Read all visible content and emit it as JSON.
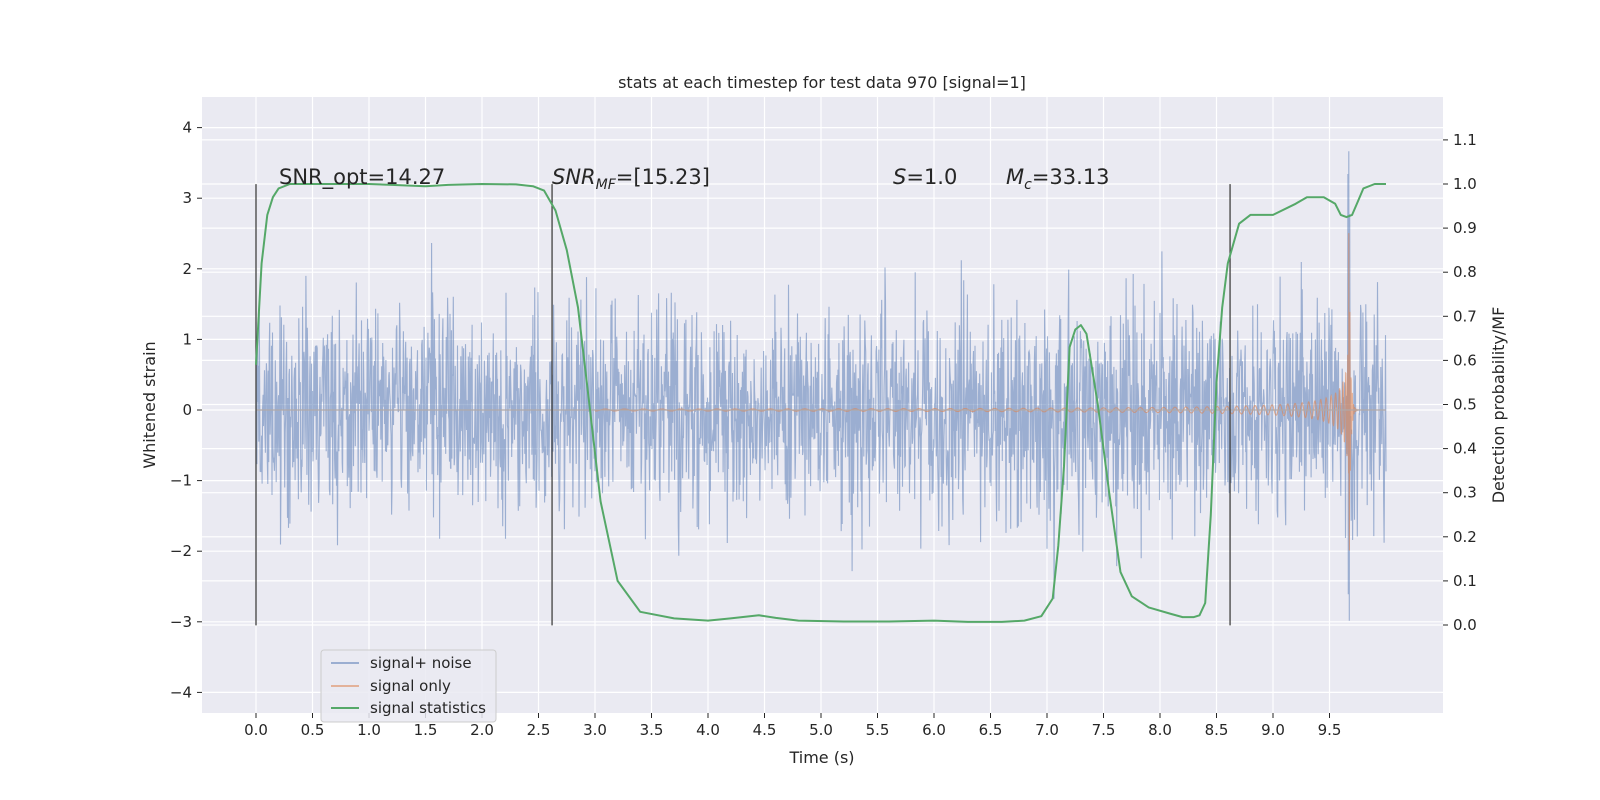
{
  "chart_data": {
    "type": "line",
    "title": "stats at each timestep for test data 970 [signal=1]",
    "xlabel": "Time (s)",
    "ylabel": "Whitened strain",
    "ylabel_right": "Detection probability/MF",
    "xlim": [
      -0.5,
      10.5
    ],
    "ylim": [
      -4.3,
      4.4
    ],
    "ylim_right": [
      -0.2,
      1.18
    ],
    "x_ticks": [
      "0.0",
      "0.5",
      "1.0",
      "1.5",
      "2.0",
      "2.5",
      "3.0",
      "3.5",
      "4.0",
      "4.5",
      "5.0",
      "5.5",
      "6.0",
      "6.5",
      "7.0",
      "7.5",
      "8.0",
      "8.5",
      "9.0",
      "9.5"
    ],
    "x_tick_values": [
      0.0,
      0.5,
      1.0,
      1.5,
      2.0,
      2.5,
      3.0,
      3.5,
      4.0,
      4.5,
      5.0,
      5.5,
      6.0,
      6.5,
      7.0,
      7.5,
      8.0,
      8.5,
      9.0,
      9.5
    ],
    "y_ticks": [
      "4",
      "3",
      "2",
      "1",
      "0",
      "−1",
      "−2",
      "−3",
      "−4"
    ],
    "y_tick_values": [
      4,
      3,
      2,
      1,
      0,
      -1,
      -2,
      -3,
      -4
    ],
    "y_right_ticks": [
      "1.1",
      "1.0",
      "0.9",
      "0.8",
      "0.7",
      "0.6",
      "0.5",
      "0.4",
      "0.3",
      "0.2",
      "0.1",
      "0.0"
    ],
    "y_right_tick_values": [
      1.1,
      1.0,
      0.9,
      0.8,
      0.7,
      0.6,
      0.5,
      0.4,
      0.3,
      0.2,
      0.1,
      0.0
    ],
    "grid": true,
    "legend_position": "lower-left",
    "annotations": {
      "snr_opt": "SNR_opt=14.27",
      "snr_mf_main": "SNR",
      "snr_mf_sub": "MF",
      "snr_mf_value": "=[15.23]",
      "s_main": "S",
      "s_value": "=1.0",
      "mc_main": "M",
      "mc_sub": "c",
      "mc_value": "=33.13"
    },
    "vertical_markers_x": [
      0.0,
      2.62,
      8.62
    ],
    "vertical_markers_range": [
      -3.05,
      3.2
    ],
    "series": [
      {
        "name": "signal+ noise",
        "color": "#4c72b0",
        "x_range": [
          0.0,
          10.0
        ],
        "typical_amplitude": 1.3,
        "peak_amplitude": 4.05
      },
      {
        "name": "signal only",
        "color": "#dd8452",
        "chirp_peak_time": 9.67,
        "peak_amplitude": 3.3
      },
      {
        "name": "signal statistics",
        "color": "#55a868",
        "axis": "right",
        "x": [
          0.0,
          0.05,
          0.1,
          0.15,
          0.2,
          0.3,
          0.5,
          0.8,
          1.0,
          1.2,
          1.5,
          1.7,
          2.0,
          2.3,
          2.45,
          2.55,
          2.65,
          2.75,
          2.85,
          2.95,
          3.05,
          3.2,
          3.4,
          3.7,
          4.0,
          4.2,
          4.45,
          4.6,
          4.8,
          5.2,
          5.6,
          6.0,
          6.3,
          6.6,
          6.8,
          6.95,
          7.05,
          7.1,
          7.15,
          7.2,
          7.25,
          7.3,
          7.35,
          7.45,
          7.55,
          7.65,
          7.75,
          7.9,
          8.1,
          8.2,
          8.3,
          8.35,
          8.4,
          8.45,
          8.5,
          8.55,
          8.6,
          8.7,
          8.8,
          9.0,
          9.2,
          9.3,
          9.45,
          9.55,
          9.6,
          9.65,
          9.7,
          9.75,
          9.8,
          9.9,
          10.0
        ],
        "values": [
          0.59,
          0.82,
          0.93,
          0.97,
          0.99,
          1.0,
          1.0,
          1.0,
          1.0,
          0.998,
          0.995,
          0.998,
          1.0,
          0.999,
          0.995,
          0.985,
          0.94,
          0.85,
          0.72,
          0.5,
          0.28,
          0.1,
          0.03,
          0.015,
          0.01,
          0.015,
          0.022,
          0.016,
          0.01,
          0.008,
          0.008,
          0.01,
          0.007,
          0.007,
          0.01,
          0.02,
          0.06,
          0.18,
          0.36,
          0.63,
          0.67,
          0.68,
          0.66,
          0.5,
          0.3,
          0.12,
          0.065,
          0.04,
          0.025,
          0.018,
          0.018,
          0.022,
          0.05,
          0.25,
          0.55,
          0.72,
          0.82,
          0.91,
          0.93,
          0.93,
          0.955,
          0.97,
          0.97,
          0.955,
          0.93,
          0.925,
          0.93,
          0.96,
          0.99,
          1.0,
          1.0
        ]
      }
    ]
  }
}
